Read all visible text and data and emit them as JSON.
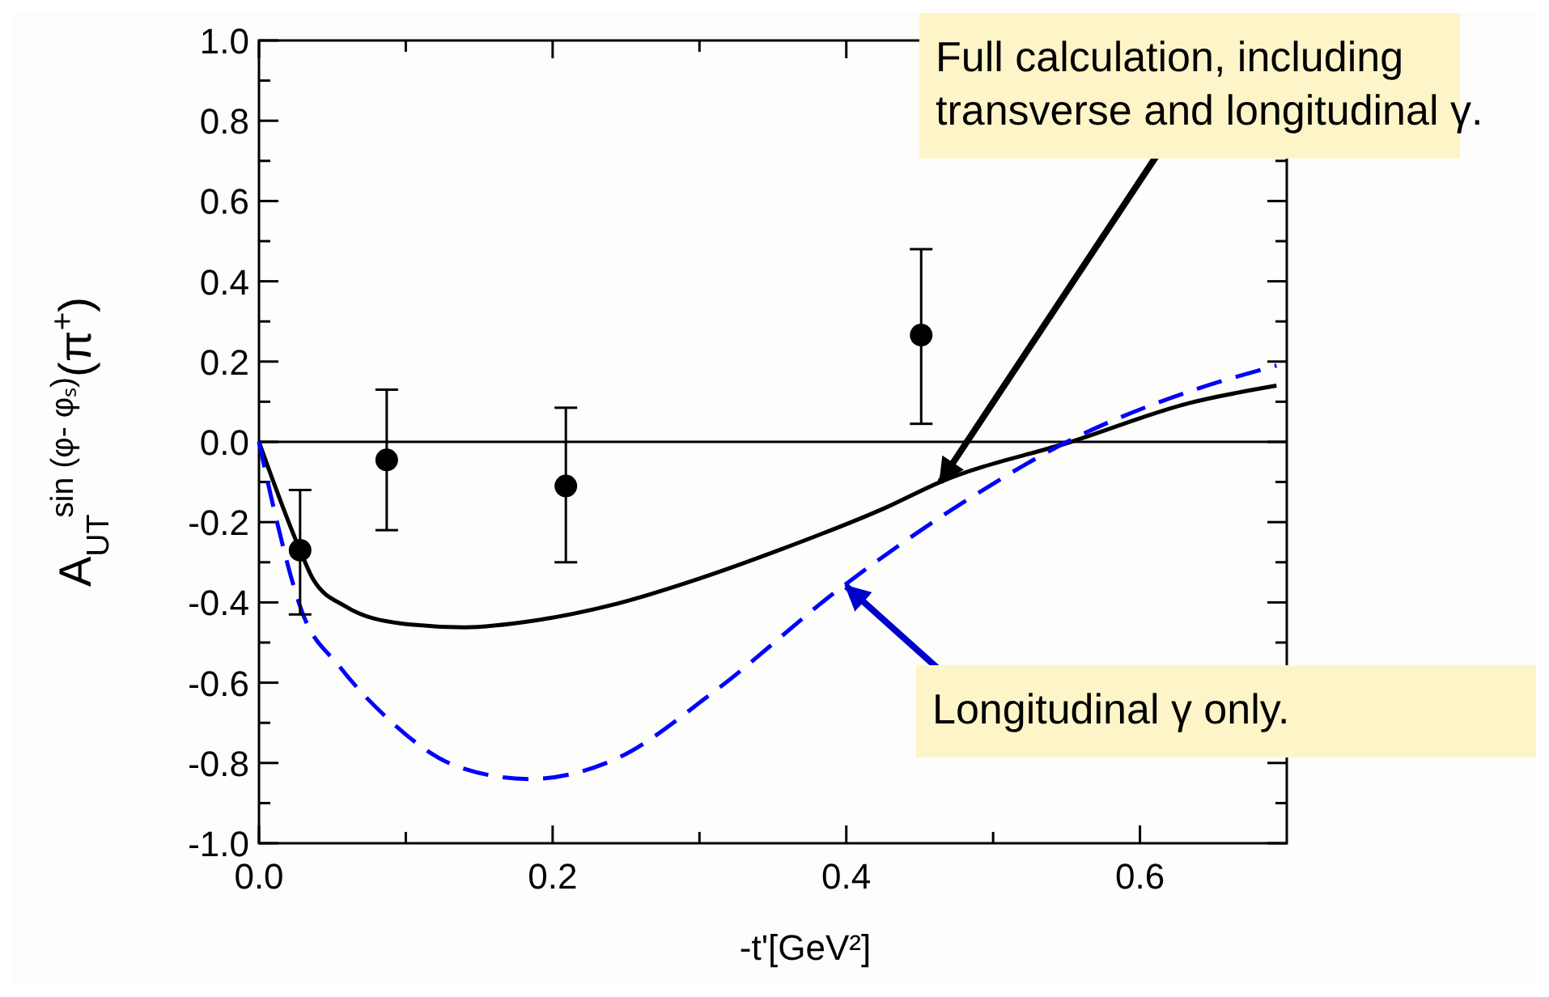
{
  "chart_data": {
    "type": "line",
    "xlabel": "-t'[GeV²]",
    "ylabel": "A$_{UT}$$^{sin (φ- φₛ)}$(π$^{+}$)",
    "xlim": [
      0,
      0.7
    ],
    "ylim": [
      -1,
      1
    ],
    "xticks": [
      {
        "value": 0,
        "label": "0.0"
      },
      {
        "value": 0.1,
        "label": null
      },
      {
        "value": 0.2,
        "label": "0.2"
      },
      {
        "value": 0.3,
        "label": null
      },
      {
        "value": 0.4,
        "label": "0.4"
      },
      {
        "value": 0.5,
        "label": null
      },
      {
        "value": 0.6,
        "label": "0.6"
      }
    ],
    "yticks": [
      {
        "value": -1,
        "label": "-1.0"
      },
      {
        "value": -0.9,
        "label": null
      },
      {
        "value": -0.8,
        "label": "-0.8"
      },
      {
        "value": -0.7,
        "label": null
      },
      {
        "value": -0.6,
        "label": "-0.6"
      },
      {
        "value": -0.5,
        "label": null
      },
      {
        "value": -0.4,
        "label": "-0.4"
      },
      {
        "value": -0.3,
        "label": null
      },
      {
        "value": -0.2,
        "label": "-0.2"
      },
      {
        "value": -0.1,
        "label": null
      },
      {
        "value": 0,
        "label": "0.0"
      },
      {
        "value": 0.1,
        "label": null
      },
      {
        "value": 0.2,
        "label": "0.2"
      },
      {
        "value": 0.3,
        "label": null
      },
      {
        "value": 0.4,
        "label": "0.4"
      },
      {
        "value": 0.5,
        "label": null
      },
      {
        "value": 0.6,
        "label": "0.6"
      },
      {
        "value": 0.7,
        "label": null
      },
      {
        "value": 0.8,
        "label": "0.8"
      },
      {
        "value": 0.9,
        "label": null
      },
      {
        "value": 1,
        "label": "1.0"
      }
    ],
    "grid": false,
    "ref_lines": [
      {
        "axis": "y",
        "value": 0,
        "color": "#000000"
      }
    ],
    "series": [
      {
        "color": "#000000",
        "line_style": "solid",
        "marker": "none",
        "x": [
          0,
          0.028,
          0.037,
          0.059,
          0.096,
          0.14,
          0.188,
          0.243,
          0.298,
          0.354,
          0.428,
          0.464,
          0.553,
          0.634,
          0.693
        ],
        "values": [
          0,
          -0.27,
          -0.343,
          -0.41,
          -0.452,
          -0.462,
          -0.445,
          -0.404,
          -0.343,
          -0.27,
          -0.162,
          -0.1,
          0,
          0.097,
          0.14
        ]
      },
      {
        "color": "#0000ff",
        "line_style": "dashed",
        "marker": "none",
        "x": [
          0,
          0.011,
          0.029,
          0.055,
          0.085,
          0.136,
          0.184,
          0.243,
          0.309,
          0.394,
          0.416,
          0.486,
          0.553,
          0.634,
          0.693
        ],
        "values": [
          0,
          -0.18,
          -0.42,
          -0.56,
          -0.68,
          -0.81,
          -0.84,
          -0.79,
          -0.625,
          -0.37,
          -0.31,
          -0.136,
          0.005,
          0.126,
          0.19
        ]
      },
      {
        "type": "scatter",
        "color": "#000000",
        "marker": "circle",
        "x": [
          0.028,
          0.087,
          0.209,
          0.451
        ],
        "values": [
          -0.27,
          -0.045,
          -0.11,
          0.266
        ],
        "errors": [
          [
            -0.43,
            -0.12
          ],
          [
            -0.22,
            0.13
          ],
          [
            -0.3,
            0.085
          ],
          [
            0.045,
            0.48
          ]
        ]
      }
    ],
    "annotations": [
      {
        "text": "Full calculation, including transverse and longitudinal γ.",
        "x": 0.464,
        "y": -0.1
      },
      {
        "text": "Longitudinal γ only.",
        "x": 0.4,
        "y": -0.36
      }
    ]
  }
}
